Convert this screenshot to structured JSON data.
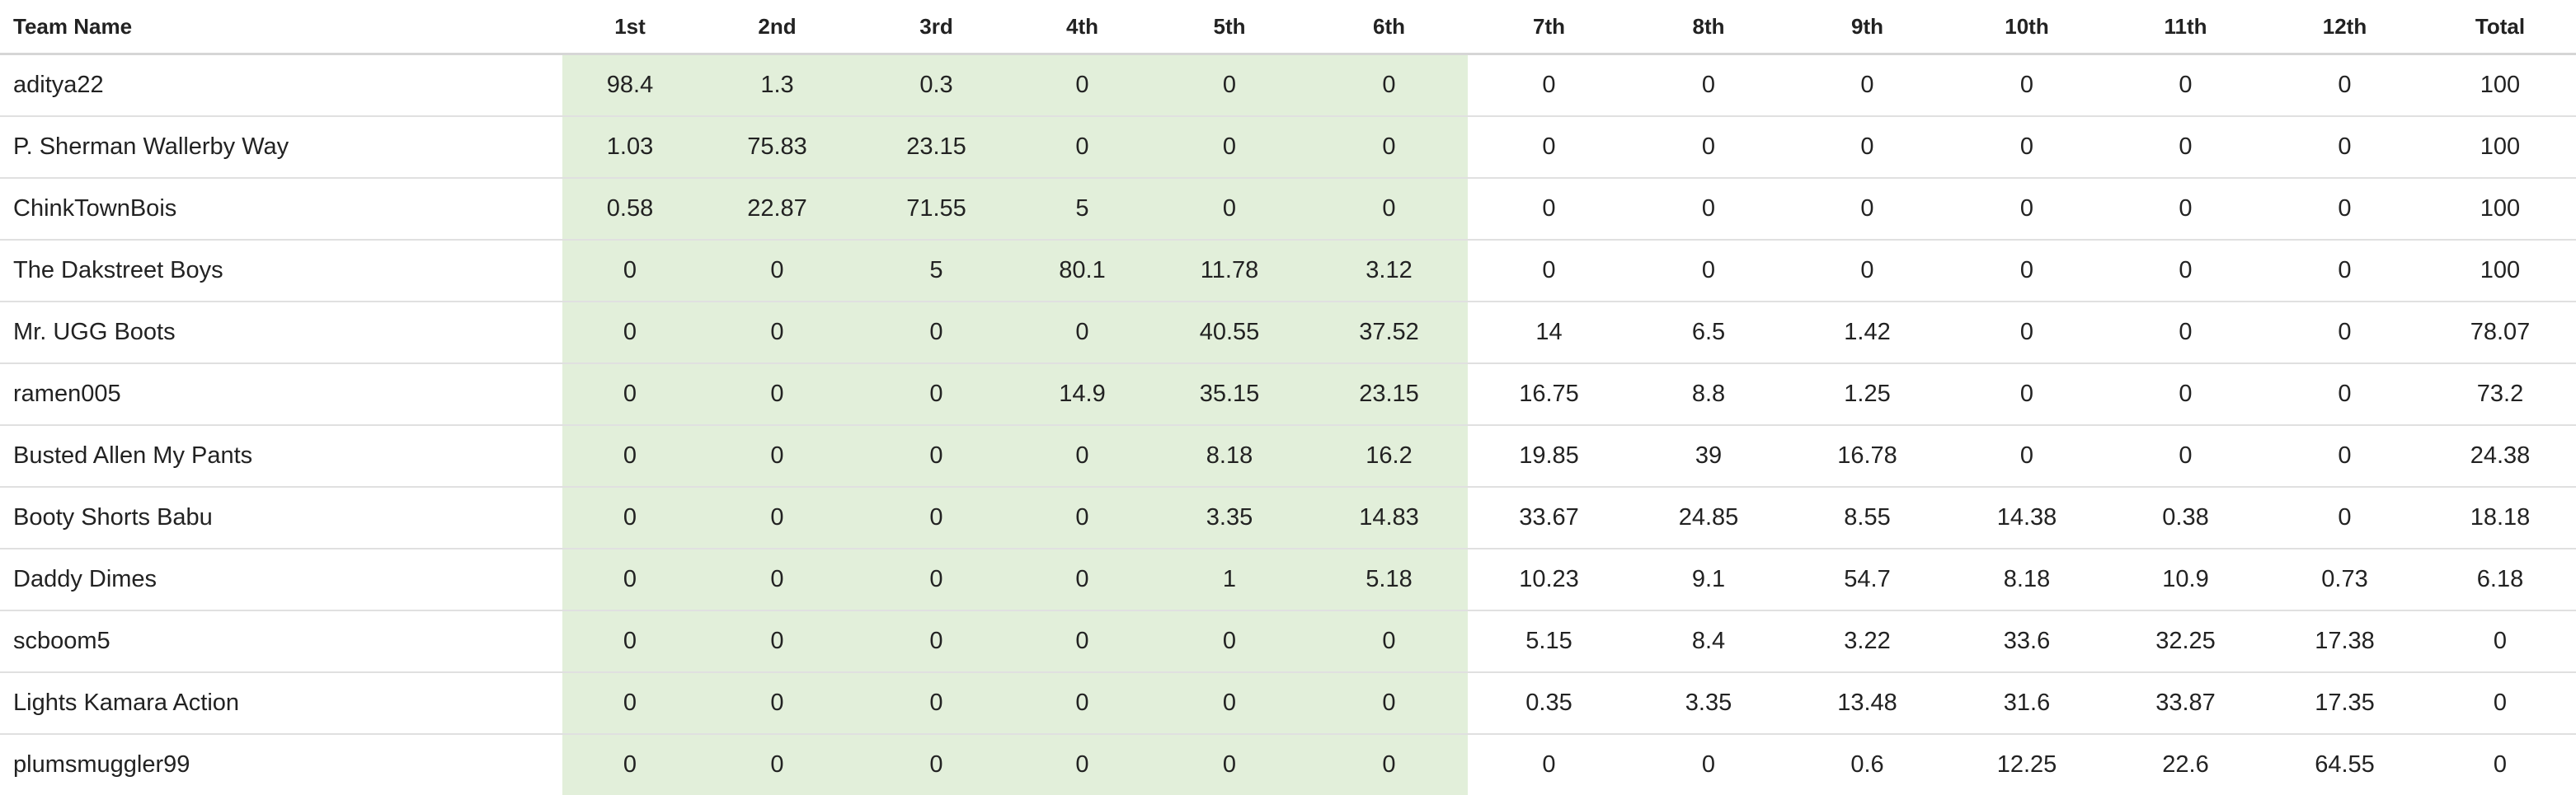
{
  "table": {
    "colors": {
      "playoff_highlight": "#e2efda",
      "header_border": "#d6d6d6",
      "row_border": "#e0e0e0"
    },
    "headers": [
      "Team Name",
      "1st",
      "2nd",
      "3rd",
      "4th",
      "5th",
      "6th",
      "7th",
      "8th",
      "9th",
      "10th",
      "11th",
      "12th",
      "Total"
    ],
    "rows": [
      {
        "team": "aditya22",
        "values": [
          "98.4",
          "1.3",
          "0.3",
          "0",
          "0",
          "0",
          "0",
          "0",
          "0",
          "0",
          "0",
          "0",
          "100"
        ]
      },
      {
        "team": "P. Sherman Wallerby Way",
        "values": [
          "1.03",
          "75.83",
          "23.15",
          "0",
          "0",
          "0",
          "0",
          "0",
          "0",
          "0",
          "0",
          "0",
          "100"
        ]
      },
      {
        "team": "ChinkTownBois",
        "values": [
          "0.58",
          "22.87",
          "71.55",
          "5",
          "0",
          "0",
          "0",
          "0",
          "0",
          "0",
          "0",
          "0",
          "100"
        ]
      },
      {
        "team": "The Dakstreet Boys",
        "values": [
          "0",
          "0",
          "5",
          "80.1",
          "11.78",
          "3.12",
          "0",
          "0",
          "0",
          "0",
          "0",
          "0",
          "100"
        ]
      },
      {
        "team": "Mr. UGG Boots",
        "values": [
          "0",
          "0",
          "0",
          "0",
          "40.55",
          "37.52",
          "14",
          "6.5",
          "1.42",
          "0",
          "0",
          "0",
          "78.07"
        ]
      },
      {
        "team": "ramen005",
        "values": [
          "0",
          "0",
          "0",
          "14.9",
          "35.15",
          "23.15",
          "16.75",
          "8.8",
          "1.25",
          "0",
          "0",
          "0",
          "73.2"
        ]
      },
      {
        "team": "Busted Allen My Pants",
        "values": [
          "0",
          "0",
          "0",
          "0",
          "8.18",
          "16.2",
          "19.85",
          "39",
          "16.78",
          "0",
          "0",
          "0",
          "24.38"
        ]
      },
      {
        "team": "Booty Shorts Babu",
        "values": [
          "0",
          "0",
          "0",
          "0",
          "3.35",
          "14.83",
          "33.67",
          "24.85",
          "8.55",
          "14.38",
          "0.38",
          "0",
          "18.18"
        ]
      },
      {
        "team": "Daddy Dimes",
        "values": [
          "0",
          "0",
          "0",
          "0",
          "1",
          "5.18",
          "10.23",
          "9.1",
          "54.7",
          "8.18",
          "10.9",
          "0.73",
          "6.18"
        ]
      },
      {
        "team": "scboom5",
        "values": [
          "0",
          "0",
          "0",
          "0",
          "0",
          "0",
          "5.15",
          "8.4",
          "3.22",
          "33.6",
          "32.25",
          "17.38",
          "0"
        ]
      },
      {
        "team": "Lights Kamara Action",
        "values": [
          "0",
          "0",
          "0",
          "0",
          "0",
          "0",
          "0.35",
          "3.35",
          "13.48",
          "31.6",
          "33.87",
          "17.35",
          "0"
        ]
      },
      {
        "team": "plumsmuggler99",
        "values": [
          "0",
          "0",
          "0",
          "0",
          "0",
          "0",
          "0",
          "0",
          "0.6",
          "12.25",
          "22.6",
          "64.55",
          "0"
        ]
      }
    ]
  }
}
